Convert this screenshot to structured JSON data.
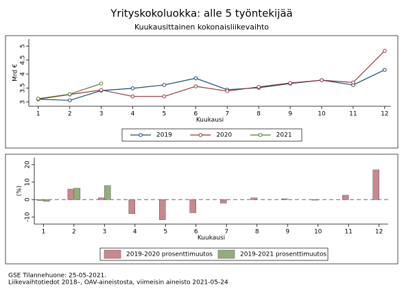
{
  "title": "Yrityskokoluokka: alle 5 työntekijää",
  "chart_data": [
    {
      "type": "line",
      "subtitle": "Kuukausittainen kokonaisliikevaihto",
      "x_label": "Kuukausi",
      "y_label": "Mrd €",
      "x": [
        1,
        2,
        3,
        4,
        5,
        6,
        7,
        8,
        9,
        10,
        11,
        12
      ],
      "xlim": [
        0.7,
        12.2
      ],
      "xticks": [
        1,
        2,
        3,
        4,
        5,
        6,
        7,
        8,
        9,
        10,
        11,
        12
      ],
      "ylim": [
        2.85,
        5.25
      ],
      "yticks": [
        3,
        3.5,
        4,
        4.5,
        5
      ],
      "series": [
        {
          "name": "2019",
          "color": "#1a476f",
          "values": [
            3.1,
            3.06,
            3.41,
            3.49,
            3.61,
            3.85,
            3.44,
            3.51,
            3.66,
            3.78,
            3.61,
            4.15
          ]
        },
        {
          "name": "2020",
          "color": "#90353b",
          "values": [
            3.1,
            3.27,
            3.43,
            3.2,
            3.2,
            3.56,
            3.39,
            3.54,
            3.68,
            3.78,
            3.7,
            4.83
          ]
        },
        {
          "name": "2021",
          "color": "#55752f",
          "values": [
            3.12,
            3.28,
            3.66,
            null,
            null,
            null,
            null,
            null,
            null,
            null,
            null,
            null
          ]
        }
      ]
    },
    {
      "type": "bar",
      "x_label": "Kuukausi",
      "y_label": "(%)",
      "x": [
        1,
        2,
        3,
        4,
        5,
        6,
        7,
        8,
        9,
        10,
        11,
        12
      ],
      "xlim": [
        0.7,
        12.3
      ],
      "xticks": [
        1,
        2,
        3,
        4,
        5,
        6,
        7,
        8,
        9,
        10,
        11,
        12
      ],
      "ylim": [
        -14,
        24
      ],
      "yticks": [
        -10,
        0,
        10,
        20
      ],
      "reference_line": 0,
      "series": [
        {
          "name": "2019-2020 prosenttimuutos",
          "color": "#c9878e",
          "values": [
            -0.5,
            6,
            1,
            -8,
            -11.5,
            -7.5,
            -2,
            1,
            0.5,
            -0.3,
            2.5,
            17
          ]
        },
        {
          "name": "2019-2021 prosenttimuutos",
          "color": "#93ad7b",
          "values": [
            -1,
            6.5,
            8,
            null,
            null,
            null,
            null,
            null,
            null,
            null,
            null,
            null
          ]
        }
      ]
    }
  ],
  "notes": [
    "GSE Tilannehuone: 25-05-2021.",
    "Liikevaihtotiedot 2018–, OAV-aineistosta, viimeisin aineisto 2021-05-24"
  ]
}
